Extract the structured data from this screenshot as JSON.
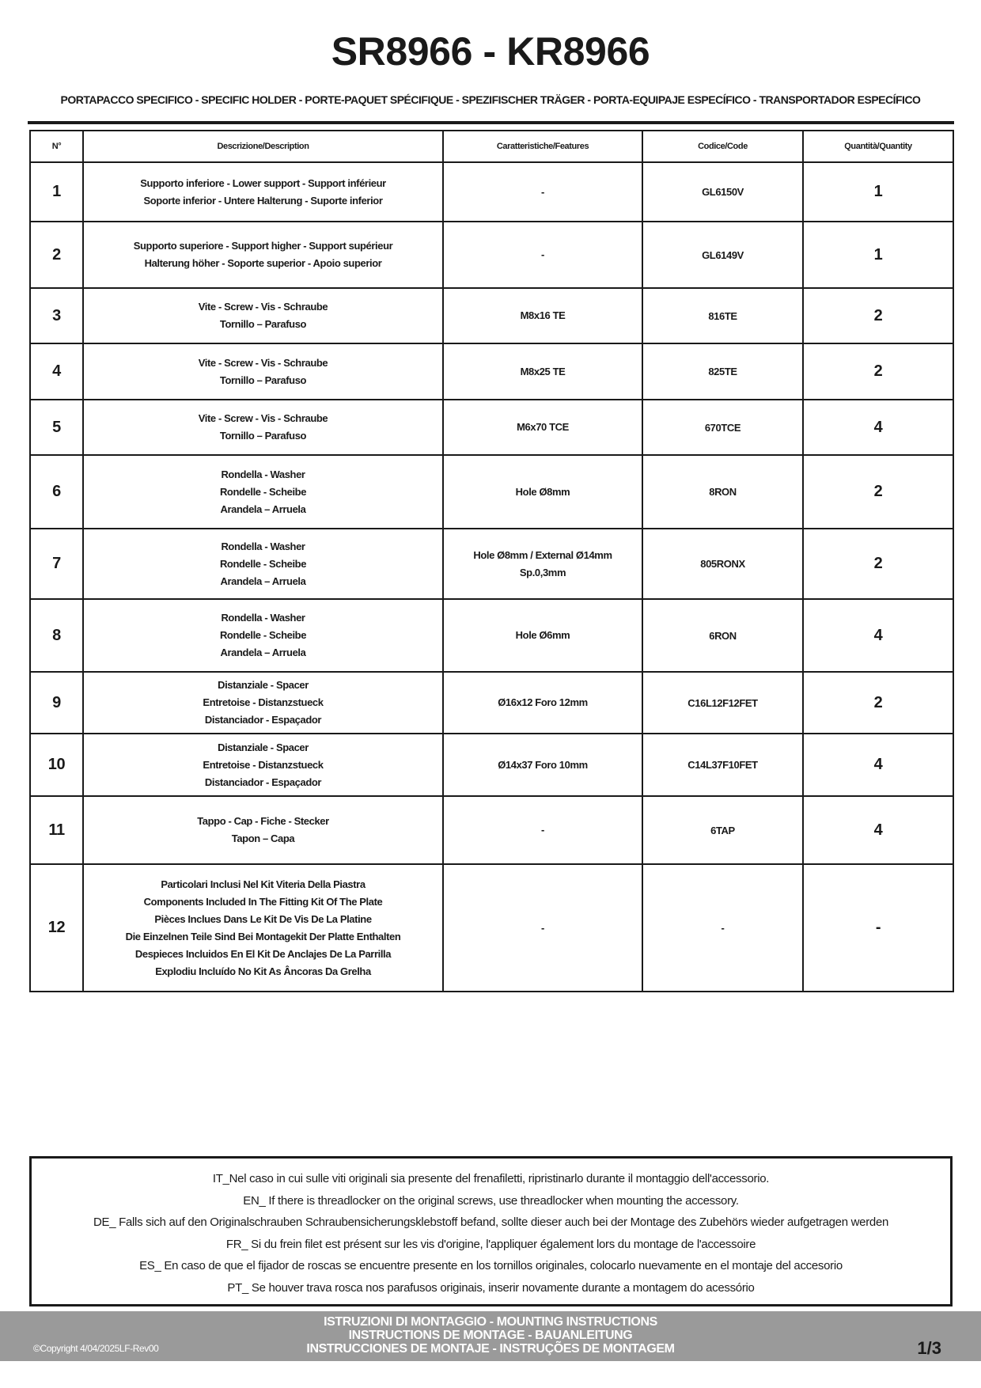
{
  "header": {
    "title": "SR8966 - KR8966",
    "subtitle": "PORTAPACCO SPECIFICO - SPECIFIC HOLDER - PORTE-PAQUET SPÉCIFIQUE - SPEZIFISCHER TRÄGER - PORTA-EQUIPAJE ESPECÍFICO - TRANSPORTADOR ESPECÍFICO"
  },
  "table": {
    "columns": [
      "N°",
      "Descrizione/Description",
      "Caratteristiche/Features",
      "Codice/Code",
      "Quantità/Quantity"
    ],
    "rows": [
      {
        "n": "1",
        "desc": [
          "Supporto inferiore - Lower support - Support inférieur",
          "Soporte inferior - Untere Halterung - Suporte inferior"
        ],
        "feat": [
          "-"
        ],
        "code": "GL6150V",
        "qty": "1"
      },
      {
        "n": "2",
        "desc": [
          "Supporto superiore - Support higher - Support supérieur",
          "Halterung höher - Soporte superior - Apoio superior"
        ],
        "feat": [
          "-"
        ],
        "code": "GL6149V",
        "qty": "1"
      },
      {
        "n": "3",
        "desc": [
          "Vite - Screw - Vis - Schraube",
          "Tornillo – Parafuso"
        ],
        "feat": [
          "M8x16 TE"
        ],
        "code": "816TE",
        "qty": "2"
      },
      {
        "n": "4",
        "desc": [
          "Vite - Screw - Vis - Schraube",
          "Tornillo – Parafuso"
        ],
        "feat": [
          "M8x25 TE"
        ],
        "code": "825TE",
        "qty": "2"
      },
      {
        "n": "5",
        "desc": [
          "Vite - Screw - Vis - Schraube",
          "Tornillo – Parafuso"
        ],
        "feat": [
          "M6x70 TCE"
        ],
        "code": "670TCE",
        "qty": "4"
      },
      {
        "n": "6",
        "desc": [
          "Rondella - Washer",
          "Rondelle - Scheibe",
          "Arandela – Arruela"
        ],
        "feat": [
          "Hole Ø8mm"
        ],
        "code": "8RON",
        "qty": "2"
      },
      {
        "n": "7",
        "desc": [
          "Rondella - Washer",
          "Rondelle - Scheibe",
          "Arandela – Arruela"
        ],
        "feat": [
          "Hole Ø8mm / External Ø14mm",
          "Sp.0,3mm"
        ],
        "code": "805RONX",
        "qty": "2"
      },
      {
        "n": "8",
        "desc": [
          "Rondella - Washer",
          "Rondelle - Scheibe",
          "Arandela – Arruela"
        ],
        "feat": [
          "Hole Ø6mm"
        ],
        "code": "6RON",
        "qty": "4"
      },
      {
        "n": "9",
        "desc": [
          "Distanziale - Spacer",
          "Entretoise - Distanzstueck",
          "Distanciador - Espaçador"
        ],
        "feat": [
          "Ø16x12 Foro 12mm"
        ],
        "code": "C16L12F12FET",
        "qty": "2"
      },
      {
        "n": "10",
        "desc": [
          "Distanziale - Spacer",
          "Entretoise - Distanzstueck",
          "Distanciador - Espaçador"
        ],
        "feat": [
          "Ø14x37 Foro 10mm"
        ],
        "code": "C14L37F10FET",
        "qty": "4"
      },
      {
        "n": "11",
        "desc": [
          "Tappo - Cap - Fiche - Stecker",
          "Tapon – Capa"
        ],
        "feat": [
          "-"
        ],
        "code": "6TAP",
        "qty": "4"
      },
      {
        "n": "12",
        "desc": [
          "Particolari Inclusi Nel Kit Viteria Della Piastra",
          "Components Included In The Fitting Kit Of The Plate",
          "Pièces Inclues Dans Le Kit De Vis De La Platine",
          "Die Einzelnen Teile Sind Bei Montagekit Der Platte Enthalten",
          "Despieces Incluidos En El Kit De Anclajes De La Parrilla",
          "Explodiu Incluído No Kit As Âncoras Da Grelha"
        ],
        "feat": [
          "-"
        ],
        "code": "-",
        "qty": "-"
      }
    ]
  },
  "notes": [
    "IT_Nel caso in cui sulle viti originali sia presente del frenafiletti, ripristinarlo durante il montaggio dell'accessorio.",
    "EN_ If there is threadlocker on the original screws, use threadlocker when mounting the accessory.",
    "DE_ Falls sich auf den Originalschrauben Schraubensicherungsklebstoff befand, sollte dieser auch bei der Montage des Zubehörs wieder aufgetragen werden",
    "FR_ Si du frein filet est présent sur les vis d'origine, l'appliquer également lors du montage de l'accessoire",
    "ES_ En caso de que el fijador de roscas se encuentre presente en los tornillos originales, colocarlo nuevamente en el montaje del accesorio",
    "PT_ Se houver trava rosca nos parafusos originais, inserir novamente durante a montagem do acessório"
  ],
  "footer": {
    "lines": [
      "ISTRUZIONI DI MONTAGGIO  -  MOUNTING INSTRUCTIONS",
      "INSTRUCTIONS DE MONTAGE - BAUANLEITUNG",
      "INSTRUCCIONES DE MONTAJE - INSTRUÇÕES DE MONTAGEM"
    ],
    "copyright": "©Copyright 4/04/2025LF-Rev00",
    "page": "1/3"
  },
  "colors": {
    "footer_bg": "#9a9a9a",
    "border": "#1a1a1a"
  }
}
